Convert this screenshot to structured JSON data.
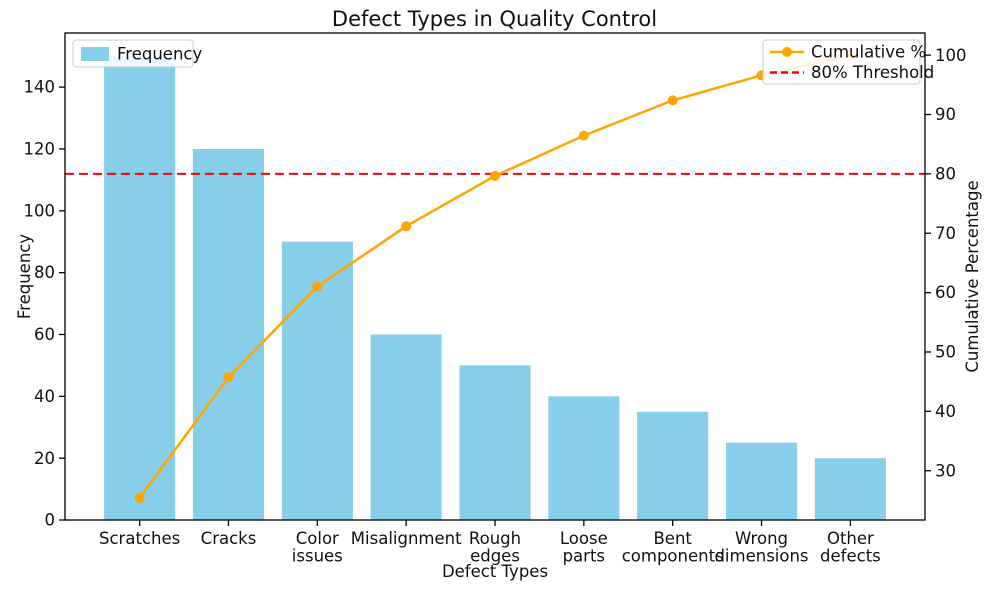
{
  "chart_data": {
    "type": "bar+line (Pareto)",
    "title": "Defect Types in Quality Control",
    "background_color": "#ffffff",
    "categories": [
      "Scratches",
      "Cracks",
      "Color\nissues",
      "Misalignment",
      "Rough\nedges",
      "Loose\nparts",
      "Bent\ncomponents",
      "Wrong\ndimensions",
      "Other\ndefects"
    ],
    "bar_series": {
      "name": "Frequency",
      "values": [
        150,
        120,
        90,
        60,
        50,
        40,
        35,
        25,
        20
      ],
      "color": "#87CEEB"
    },
    "line_series": {
      "name": "Cumulative %",
      "values": [
        25.42,
        45.76,
        61.02,
        71.19,
        79.66,
        86.44,
        92.37,
        96.61,
        100.0
      ],
      "color": "#FFA500",
      "marker": "circle"
    },
    "threshold_line": {
      "name": "80% Threshold",
      "value": 80,
      "color": "#FF0000",
      "style": "dashed"
    },
    "x_axis": {
      "label": "Defect Types",
      "range": [
        -0.84,
        8.84
      ]
    },
    "left_axis": {
      "label": "Frequency",
      "ticks": [
        0,
        20,
        40,
        60,
        80,
        100,
        120,
        140
      ],
      "range": [
        0,
        157.5
      ]
    },
    "right_axis": {
      "label": "Cumulative Percentage",
      "ticks": [
        30,
        40,
        50,
        60,
        70,
        80,
        90,
        100
      ],
      "range": [
        21.7,
        103.73
      ]
    },
    "legend_left": {
      "items": [
        {
          "label": "Frequency",
          "swatch": "patch",
          "color": "#87CEEB"
        }
      ]
    },
    "legend_right": {
      "items": [
        {
          "label": "Cumulative %",
          "swatch": "line-marker",
          "color": "#FFA500"
        },
        {
          "label": "80% Threshold",
          "swatch": "dashed-line",
          "color": "#FF0000"
        }
      ]
    }
  }
}
